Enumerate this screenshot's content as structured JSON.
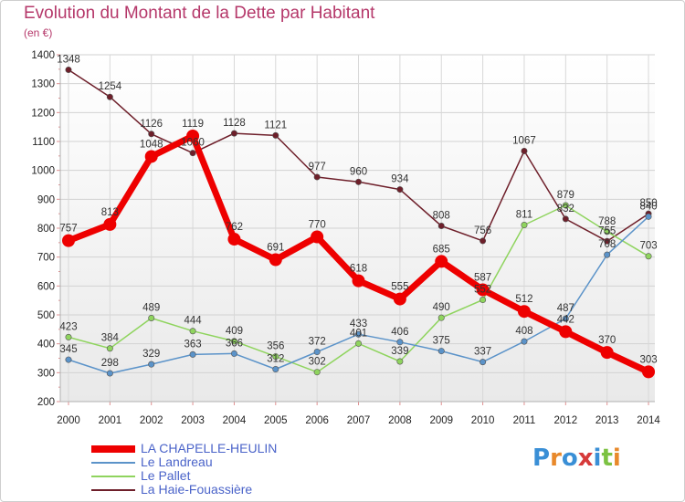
{
  "title": "Evolution du Montant de la Dette par Habitant",
  "unit": "(en €)",
  "logo": "Proxiti",
  "chart_data": {
    "type": "line",
    "title": "Evolution du Montant de la Dette par Habitant",
    "ylabel": "(en €)",
    "xlabel": "",
    "x": [
      "2000",
      "2001",
      "2002",
      "2003",
      "2004",
      "2005",
      "2006",
      "2007",
      "2008",
      "2009",
      "2010",
      "2011",
      "2012",
      "2013",
      "2014"
    ],
    "ylim": [
      200,
      1400
    ],
    "yticks": [
      200,
      300,
      400,
      500,
      600,
      700,
      800,
      900,
      1000,
      1100,
      1200,
      1300,
      1400
    ],
    "grid": true,
    "legend_position": "bottom-left",
    "series": [
      {
        "name": "La Haie-Fouassière",
        "color": "#6e1f2a",
        "values": [
          1348,
          1254,
          1126,
          1060,
          1128,
          1121,
          977,
          960,
          934,
          808,
          756,
          1067,
          832,
          755,
          850
        ]
      },
      {
        "name": "Le Pallet",
        "color": "#8fd45e",
        "values": [
          423,
          384,
          489,
          444,
          409,
          356,
          302,
          401,
          339,
          490,
          552,
          811,
          879,
          788,
          703
        ]
      },
      {
        "name": "Le Landreau",
        "color": "#5b93c9",
        "values": [
          345,
          298,
          329,
          363,
          366,
          312,
          372,
          433,
          406,
          375,
          337,
          408,
          487,
          708,
          840
        ]
      },
      {
        "name": "LA CHAPELLE-HEULIN",
        "color": "#ee0000",
        "values": [
          757,
          813,
          1048,
          1119,
          762,
          691,
          770,
          618,
          555,
          685,
          587,
          512,
          442,
          370,
          303
        ]
      }
    ],
    "legend_order": [
      "LA CHAPELLE-HEULIN",
      "Le Landreau",
      "Le Pallet",
      "La Haie-Fouassière"
    ]
  }
}
